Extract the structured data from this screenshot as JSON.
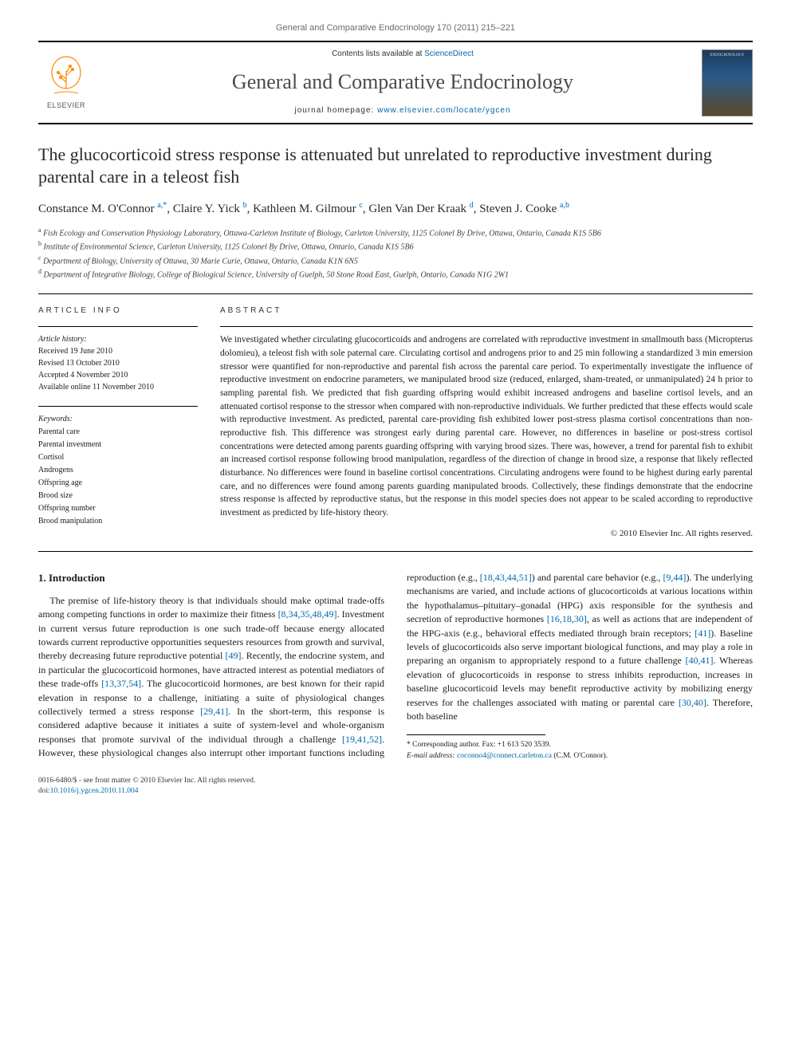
{
  "header": {
    "citation": "General and Comparative Endocrinology 170 (2011) 215–221",
    "contents_prefix": "Contents lists available at ",
    "contents_link": "ScienceDirect",
    "journal_name": "General and Comparative Endocrinology",
    "homepage_prefix": "journal homepage: ",
    "homepage_url": "www.elsevier.com/locate/ygcen",
    "publisher": "ELSEVIER",
    "cover_label": "ENDOCRINOLOGY"
  },
  "article": {
    "title": "The glucocorticoid stress response is attenuated but unrelated to reproductive investment during parental care in a teleost fish",
    "authors_html": "Constance M. O'Connor <sup>a,*</sup>, Claire Y. Yick <sup>b</sup>, Kathleen M. Gilmour <sup>c</sup>, Glen Van Der Kraak <sup>d</sup>, Steven J. Cooke <sup>a,b</sup>",
    "affiliations": [
      "Fish Ecology and Conservation Physiology Laboratory, Ottawa-Carleton Institute of Biology, Carleton University, 1125 Colonel By Drive, Ottawa, Ontario, Canada K1S 5B6",
      "Institute of Environmental Science, Carleton University, 1125 Colonel By Drive, Ottawa, Ontario, Canada K1S 5B6",
      "Department of Biology, University of Ottawa, 30 Marie Curie, Ottawa, Ontario, Canada K1N 6N5",
      "Department of Integrative Biology, College of Biological Science, University of Guelph, 50 Stone Road East, Guelph, Ontario, Canada N1G 2W1"
    ],
    "aff_marks": [
      "a",
      "b",
      "c",
      "d"
    ]
  },
  "info": {
    "heading": "article info",
    "history_label": "Article history:",
    "history": [
      "Received 19 June 2010",
      "Revised 13 October 2010",
      "Accepted 4 November 2010",
      "Available online 11 November 2010"
    ],
    "keywords_label": "Keywords:",
    "keywords": [
      "Parental care",
      "Parental investment",
      "Cortisol",
      "Androgens",
      "Offspring age",
      "Brood size",
      "Offspring number",
      "Brood manipulation"
    ]
  },
  "abstract": {
    "heading": "abstract",
    "text": "We investigated whether circulating glucocorticoids and androgens are correlated with reproductive investment in smallmouth bass (Micropterus dolomieu), a teleost fish with sole paternal care. Circulating cortisol and androgens prior to and 25 min following a standardized 3 min emersion stressor were quantified for non-reproductive and parental fish across the parental care period. To experimentally investigate the influence of reproductive investment on endocrine parameters, we manipulated brood size (reduced, enlarged, sham-treated, or unmanipulated) 24 h prior to sampling parental fish. We predicted that fish guarding offspring would exhibit increased androgens and baseline cortisol levels, and an attenuated cortisol response to the stressor when compared with non-reproductive individuals. We further predicted that these effects would scale with reproductive investment. As predicted, parental care-providing fish exhibited lower post-stress plasma cortisol concentrations than non-reproductive fish. This difference was strongest early during parental care. However, no differences in baseline or post-stress cortisol concentrations were detected among parents guarding offspring with varying brood sizes. There was, however, a trend for parental fish to exhibit an increased cortisol response following brood manipulation, regardless of the direction of change in brood size, a response that likely reflected disturbance. No differences were found in baseline cortisol concentrations. Circulating androgens were found to be highest during early parental care, and no differences were found among parents guarding manipulated broods. Collectively, these findings demonstrate that the endocrine stress response is affected by reproductive status, but the response in this model species does not appear to be scaled according to reproductive investment as predicted by life-history theory.",
    "copyright": "© 2010 Elsevier Inc. All rights reserved."
  },
  "intro": {
    "heading": "1. Introduction",
    "p1_a": "The premise of life-history theory is that individuals should make optimal trade-offs among competing functions in order to maximize their fitness ",
    "p1_ref1": "[8,34,35,48,49]",
    "p1_b": ". Investment in current versus future reproduction is one such trade-off because energy allocated towards current reproductive opportunities sequesters resources from growth and survival, thereby decreasing future reproductive potential ",
    "p1_ref2": "[49]",
    "p1_c": ". Recently, the endocrine system, and in particular the glucocorticoid hormones, have attracted interest as potential mediators of these trade-offs ",
    "p1_ref3": "[13,37,54]",
    "p1_d": ". The glucocorticoid hormones, are best known for their rapid elevation in response to a challenge, initiating a suite of physiological changes collectively termed a stress response ",
    "p1_ref4": "[29,41]",
    "p1_e": ". In the short-term, this response is considered adaptive because it initiates a suite of system-level and whole-organism responses that promote survival of the individual through a challenge ",
    "p1_ref5": "[19,41,52]",
    "p1_f": ". However, these physiological changes also interrupt other important functions including reproduction (e.g., ",
    "p1_ref6": "[18,43,44,51]",
    "p1_g": ") and parental care behavior (e.g., ",
    "p1_ref7": "[9,44]",
    "p1_h": "). The underlying mechanisms are varied, and include actions of glucocorticoids at various locations within the hypothalamus–pituitary–gonadal (HPG) axis responsible for the synthesis and secretion of reproductive hormones ",
    "p1_ref8": "[16,18,30]",
    "p1_i": ", as well as actions that are independent of the HPG-axis (e.g., behavioral effects mediated through brain receptors; ",
    "p1_ref9": "[41]",
    "p1_j": "). Baseline levels of glucocorticoids also serve important biological functions, and may play a role in preparing an organism to appropriately respond to a future challenge ",
    "p1_ref10": "[40,41]",
    "p1_k": ". Whereas elevation of glucocorticoids in response to stress inhibits reproduction, increases in baseline glucocorticoid levels may benefit reproductive activity by mobilizing energy reserves for the challenges associated with mating or parental care ",
    "p1_ref11": "[30,40]",
    "p1_l": ". Therefore, both baseline"
  },
  "footnotes": {
    "corr": "* Corresponding author. Fax: +1 613 520 3539.",
    "email_label": "E-mail address: ",
    "email": "coconno4@connect.carleton.ca",
    "email_suffix": " (C.M. O'Connor)."
  },
  "footer": {
    "issn_line": "0016-6480/$ - see front matter © 2010 Elsevier Inc. All rights reserved.",
    "doi_label": "doi:",
    "doi": "10.1016/j.ygcen.2010.11.004"
  },
  "colors": {
    "link": "#0066aa",
    "text": "#1a1a1a",
    "muted": "#6b6b6b",
    "rule": "#000000",
    "elsevier_orange": "#ff8a00"
  }
}
